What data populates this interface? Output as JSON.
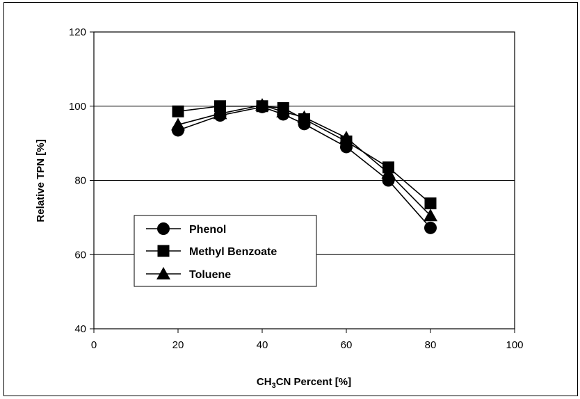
{
  "chart_data": {
    "type": "line",
    "title": "",
    "xlabel_parts": [
      "CH",
      "3",
      "CN Percent [%]"
    ],
    "ylabel": "Relative TPN  [%]",
    "xlim": [
      0,
      100
    ],
    "ylim": [
      40,
      120
    ],
    "xticks": [
      0,
      20,
      40,
      60,
      80,
      100
    ],
    "yticks": [
      40,
      60,
      80,
      100,
      120
    ],
    "gridlines_y": [
      60,
      80,
      100
    ],
    "legend_position": "left-center",
    "series": [
      {
        "name": "Phenol",
        "marker": "circle",
        "color": "#000000",
        "x": [
          20,
          30,
          40,
          45,
          50,
          60,
          70,
          80
        ],
        "y": [
          93.5,
          97.5,
          99.8,
          97.8,
          95.2,
          89.0,
          80.0,
          67.2
        ]
      },
      {
        "name": "Methyl Benzoate",
        "marker": "square",
        "color": "#000000",
        "x": [
          20,
          30,
          40,
          45,
          50,
          60,
          70,
          80
        ],
        "y": [
          98.6,
          100.0,
          100.0,
          99.5,
          96.5,
          90.5,
          83.5,
          73.8
        ]
      },
      {
        "name": "Toluene",
        "marker": "triangle",
        "color": "#000000",
        "x": [
          20,
          30,
          40,
          45,
          50,
          60,
          70,
          80
        ],
        "y": [
          95.0,
          98.0,
          100.3,
          98.5,
          97.0,
          91.5,
          82.0,
          70.5
        ]
      }
    ]
  }
}
